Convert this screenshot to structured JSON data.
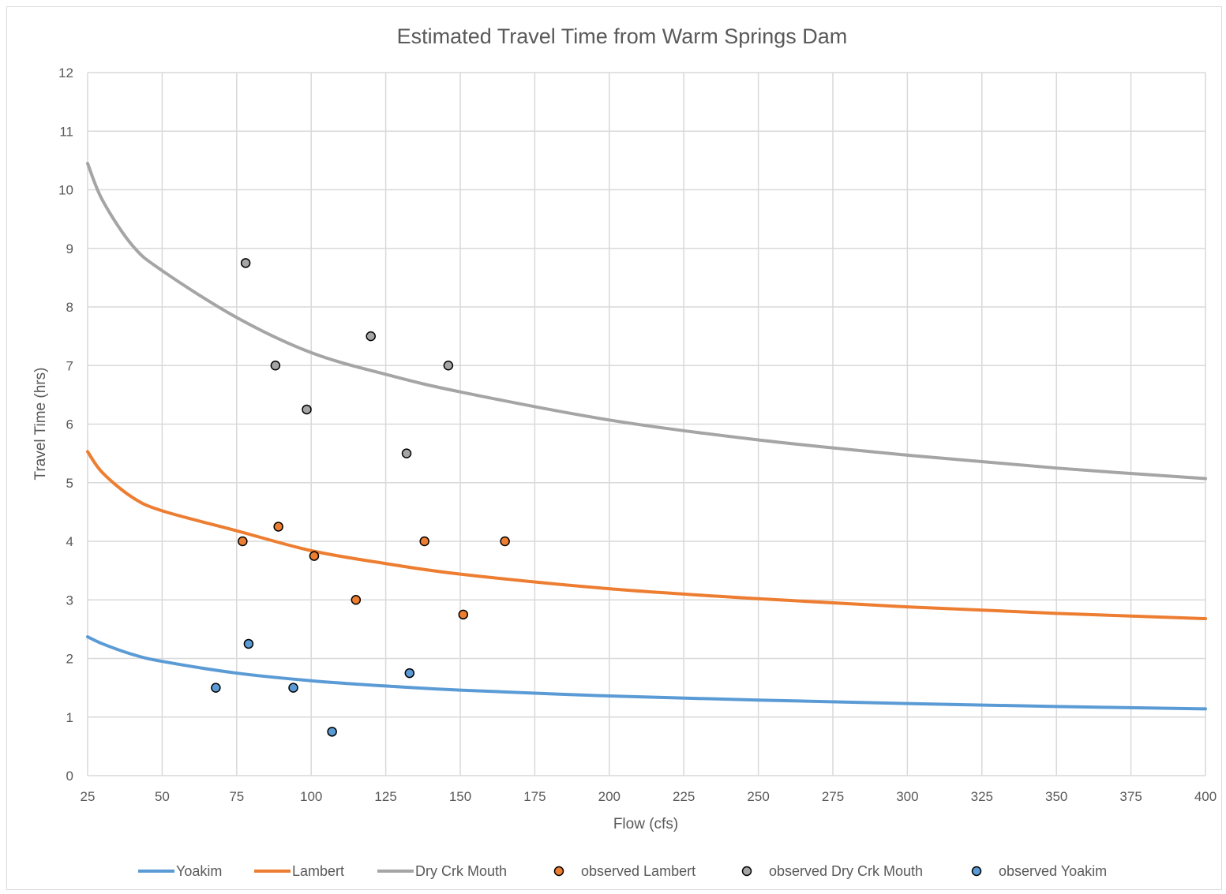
{
  "chart_data": {
    "type": "line",
    "title": "Estimated Travel Time from Warm Springs Dam",
    "xlabel": "Flow (cfs)",
    "ylabel": "Travel Time (hrs)",
    "xlim": [
      25,
      400
    ],
    "ylim": [
      0,
      12
    ],
    "x_ticks": [
      "25",
      "50",
      "75",
      "100",
      "125",
      "150",
      "175",
      "200",
      "225",
      "250",
      "275",
      "300",
      "325",
      "350",
      "375",
      "400"
    ],
    "y_ticks": [
      "0",
      "1",
      "2",
      "3",
      "4",
      "5",
      "6",
      "7",
      "8",
      "9",
      "10",
      "11",
      "12"
    ],
    "grid": true,
    "legend_position": "bottom",
    "series": [
      {
        "name": "Yoakim",
        "kind": "line",
        "color": "#5b9bd5",
        "x": [
          25,
          30,
          40,
          50,
          75,
          100,
          125,
          150,
          200,
          250,
          300,
          350,
          400
        ],
        "y": [
          2.37,
          2.25,
          2.07,
          1.95,
          1.75,
          1.62,
          1.53,
          1.46,
          1.36,
          1.29,
          1.23,
          1.18,
          1.14
        ]
      },
      {
        "name": "Lambert",
        "kind": "line",
        "color": "#ed7d31",
        "x": [
          25,
          30,
          40,
          50,
          75,
          100,
          125,
          150,
          200,
          250,
          300,
          350,
          400
        ],
        "y": [
          5.53,
          5.17,
          4.75,
          4.52,
          4.18,
          3.84,
          3.62,
          3.44,
          3.19,
          3.02,
          2.88,
          2.77,
          2.68
        ]
      },
      {
        "name": "Dry Crk Mouth",
        "kind": "line",
        "color": "#a5a5a5",
        "x": [
          25,
          30,
          40,
          50,
          75,
          100,
          125,
          150,
          200,
          250,
          300,
          350,
          400
        ],
        "y": [
          10.45,
          9.82,
          9.05,
          8.62,
          7.82,
          7.22,
          6.85,
          6.55,
          6.07,
          5.73,
          5.47,
          5.25,
          5.07
        ]
      },
      {
        "name": "observed Lambert",
        "kind": "scatter",
        "color": "#ed7d31",
        "x": [
          77,
          89,
          101,
          115,
          138,
          151,
          165
        ],
        "y": [
          4.0,
          4.25,
          3.75,
          3.0,
          4.0,
          2.75,
          4.0
        ]
      },
      {
        "name": "observed Dry Crk Mouth",
        "kind": "scatter",
        "color": "#a5a5a5",
        "x": [
          78,
          88,
          98.5,
          120,
          132,
          146
        ],
        "y": [
          8.75,
          7.0,
          6.25,
          7.5,
          5.5,
          7.0
        ]
      },
      {
        "name": "observed Yoakim",
        "kind": "scatter",
        "color": "#5b9bd5",
        "x": [
          68,
          79,
          94,
          107,
          133
        ],
        "y": [
          1.5,
          2.25,
          1.5,
          0.75,
          1.75
        ]
      }
    ]
  }
}
